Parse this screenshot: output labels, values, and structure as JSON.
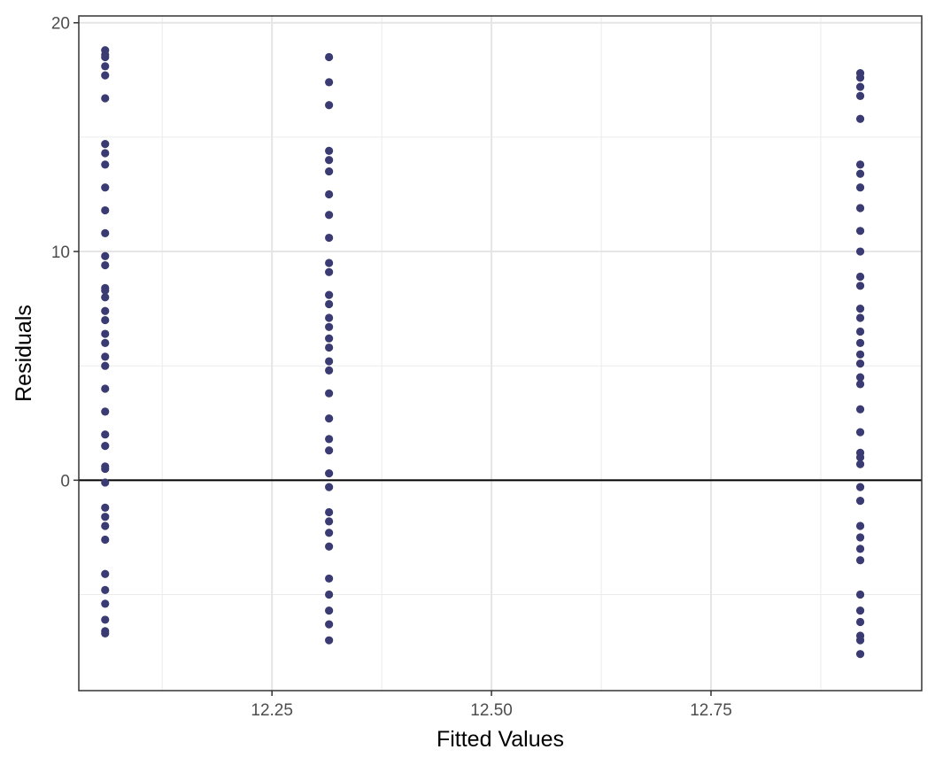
{
  "chart_data": {
    "type": "scatter",
    "title": "",
    "xlabel": "Fitted Values",
    "ylabel": "Residuals",
    "xlim": [
      12.03,
      12.99
    ],
    "ylim": [
      -9.2,
      20.3
    ],
    "x_ticks": [
      12.25,
      12.5,
      12.75
    ],
    "x_tick_labels": [
      "12.25",
      "12.50",
      "12.75"
    ],
    "y_ticks": [
      0,
      10,
      20
    ],
    "y_tick_labels": [
      "0",
      "10",
      "20"
    ],
    "grid": true,
    "reference_line_y": 0,
    "point_color": "#3b3b73",
    "points": [
      {
        "x": 12.06,
        "y": 18.8
      },
      {
        "x": 12.06,
        "y": 18.6
      },
      {
        "x": 12.06,
        "y": 18.5
      },
      {
        "x": 12.06,
        "y": 18.1
      },
      {
        "x": 12.06,
        "y": 17.7
      },
      {
        "x": 12.06,
        "y": 16.7
      },
      {
        "x": 12.06,
        "y": 14.7
      },
      {
        "x": 12.06,
        "y": 14.3
      },
      {
        "x": 12.06,
        "y": 13.8
      },
      {
        "x": 12.06,
        "y": 12.8
      },
      {
        "x": 12.06,
        "y": 11.8
      },
      {
        "x": 12.06,
        "y": 10.8
      },
      {
        "x": 12.06,
        "y": 9.8
      },
      {
        "x": 12.06,
        "y": 9.4
      },
      {
        "x": 12.06,
        "y": 8.4
      },
      {
        "x": 12.06,
        "y": 8.3
      },
      {
        "x": 12.06,
        "y": 8.0
      },
      {
        "x": 12.06,
        "y": 7.4
      },
      {
        "x": 12.06,
        "y": 7.0
      },
      {
        "x": 12.06,
        "y": 6.4
      },
      {
        "x": 12.06,
        "y": 6.0
      },
      {
        "x": 12.06,
        "y": 5.4
      },
      {
        "x": 12.06,
        "y": 5.0
      },
      {
        "x": 12.06,
        "y": 4.0
      },
      {
        "x": 12.06,
        "y": 3.0
      },
      {
        "x": 12.06,
        "y": 2.0
      },
      {
        "x": 12.06,
        "y": 1.5
      },
      {
        "x": 12.06,
        "y": 0.6
      },
      {
        "x": 12.06,
        "y": 0.5
      },
      {
        "x": 12.06,
        "y": -0.1
      },
      {
        "x": 12.06,
        "y": -1.2
      },
      {
        "x": 12.06,
        "y": -1.6
      },
      {
        "x": 12.06,
        "y": -2.0
      },
      {
        "x": 12.06,
        "y": -2.6
      },
      {
        "x": 12.06,
        "y": -4.1
      },
      {
        "x": 12.06,
        "y": -4.8
      },
      {
        "x": 12.06,
        "y": -5.4
      },
      {
        "x": 12.06,
        "y": -6.1
      },
      {
        "x": 12.06,
        "y": -6.6
      },
      {
        "x": 12.06,
        "y": -6.7
      },
      {
        "x": 12.315,
        "y": 18.5
      },
      {
        "x": 12.315,
        "y": 17.4
      },
      {
        "x": 12.315,
        "y": 16.4
      },
      {
        "x": 12.315,
        "y": 14.4
      },
      {
        "x": 12.315,
        "y": 14.0
      },
      {
        "x": 12.315,
        "y": 13.5
      },
      {
        "x": 12.315,
        "y": 12.5
      },
      {
        "x": 12.315,
        "y": 11.6
      },
      {
        "x": 12.315,
        "y": 10.6
      },
      {
        "x": 12.315,
        "y": 9.5
      },
      {
        "x": 12.315,
        "y": 9.1
      },
      {
        "x": 12.315,
        "y": 8.1
      },
      {
        "x": 12.315,
        "y": 7.7
      },
      {
        "x": 12.315,
        "y": 7.1
      },
      {
        "x": 12.315,
        "y": 6.7
      },
      {
        "x": 12.315,
        "y": 6.2
      },
      {
        "x": 12.315,
        "y": 5.8
      },
      {
        "x": 12.315,
        "y": 5.2
      },
      {
        "x": 12.315,
        "y": 4.8
      },
      {
        "x": 12.315,
        "y": 3.8
      },
      {
        "x": 12.315,
        "y": 2.7
      },
      {
        "x": 12.315,
        "y": 1.8
      },
      {
        "x": 12.315,
        "y": 1.3
      },
      {
        "x": 12.315,
        "y": 0.3
      },
      {
        "x": 12.315,
        "y": -0.3
      },
      {
        "x": 12.315,
        "y": -1.4
      },
      {
        "x": 12.315,
        "y": -1.8
      },
      {
        "x": 12.315,
        "y": -2.3
      },
      {
        "x": 12.315,
        "y": -2.9
      },
      {
        "x": 12.315,
        "y": -4.3
      },
      {
        "x": 12.315,
        "y": -5.0
      },
      {
        "x": 12.315,
        "y": -5.7
      },
      {
        "x": 12.315,
        "y": -6.3
      },
      {
        "x": 12.315,
        "y": -7.0
      },
      {
        "x": 12.92,
        "y": 17.8
      },
      {
        "x": 12.92,
        "y": 17.6
      },
      {
        "x": 12.92,
        "y": 17.2
      },
      {
        "x": 12.92,
        "y": 16.8
      },
      {
        "x": 12.92,
        "y": 15.8
      },
      {
        "x": 12.92,
        "y": 13.8
      },
      {
        "x": 12.92,
        "y": 13.4
      },
      {
        "x": 12.92,
        "y": 12.8
      },
      {
        "x": 12.92,
        "y": 11.9
      },
      {
        "x": 12.92,
        "y": 10.9
      },
      {
        "x": 12.92,
        "y": 10.0
      },
      {
        "x": 12.92,
        "y": 8.9
      },
      {
        "x": 12.92,
        "y": 8.5
      },
      {
        "x": 12.92,
        "y": 7.5
      },
      {
        "x": 12.92,
        "y": 7.1
      },
      {
        "x": 12.92,
        "y": 6.5
      },
      {
        "x": 12.92,
        "y": 6.0
      },
      {
        "x": 12.92,
        "y": 5.5
      },
      {
        "x": 12.92,
        "y": 5.1
      },
      {
        "x": 12.92,
        "y": 4.5
      },
      {
        "x": 12.92,
        "y": 4.2
      },
      {
        "x": 12.92,
        "y": 3.1
      },
      {
        "x": 12.92,
        "y": 2.1
      },
      {
        "x": 12.92,
        "y": 1.2
      },
      {
        "x": 12.92,
        "y": 1.0
      },
      {
        "x": 12.92,
        "y": 0.7
      },
      {
        "x": 12.92,
        "y": -0.3
      },
      {
        "x": 12.92,
        "y": -0.9
      },
      {
        "x": 12.92,
        "y": -2.0
      },
      {
        "x": 12.92,
        "y": -2.5
      },
      {
        "x": 12.92,
        "y": -3.0
      },
      {
        "x": 12.92,
        "y": -3.5
      },
      {
        "x": 12.92,
        "y": -5.0
      },
      {
        "x": 12.92,
        "y": -5.7
      },
      {
        "x": 12.92,
        "y": -6.2
      },
      {
        "x": 12.92,
        "y": -6.8
      },
      {
        "x": 12.92,
        "y": -7.0
      },
      {
        "x": 12.92,
        "y": -7.6
      }
    ]
  }
}
